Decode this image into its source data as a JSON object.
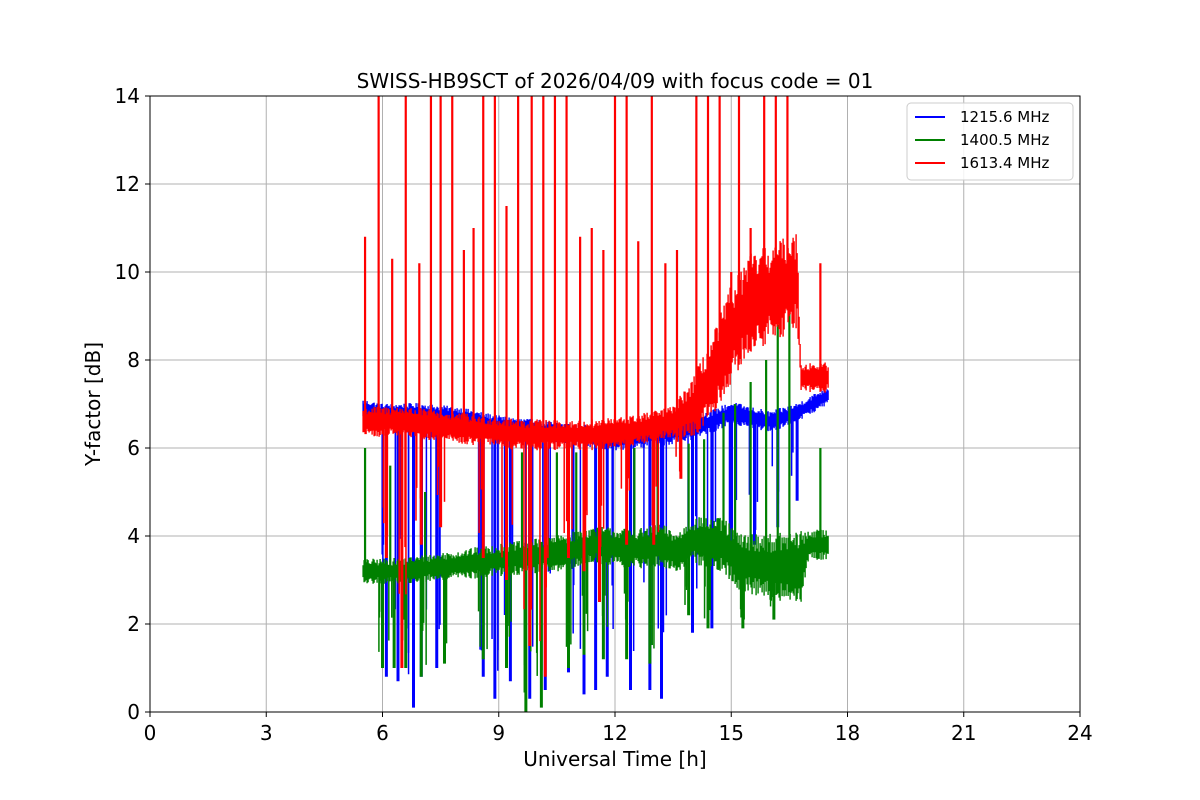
{
  "chart_data": {
    "type": "line",
    "title": "SWISS-HB9SCT of 2026/04/09 with focus code = 01",
    "xlabel": "Universal Time [h]",
    "ylabel": "Y-factor [dB]",
    "xlim": [
      0,
      24
    ],
    "ylim": [
      0,
      14
    ],
    "xticks": [
      0,
      3,
      6,
      9,
      12,
      15,
      18,
      21,
      24
    ],
    "yticks": [
      0,
      2,
      4,
      6,
      8,
      10,
      12,
      14
    ],
    "grid": true,
    "legend_position": "top-right",
    "series": [
      {
        "name": "1215.6 MHz",
        "color": "#0000ff",
        "baseline": [
          [
            5.5,
            6.9
          ],
          [
            6.0,
            6.8
          ],
          [
            7.0,
            6.8
          ],
          [
            8.0,
            6.7
          ],
          [
            9.0,
            6.5
          ],
          [
            10.0,
            6.4
          ],
          [
            11.0,
            6.3
          ],
          [
            12.0,
            6.2
          ],
          [
            13.0,
            6.3
          ],
          [
            13.8,
            6.4
          ],
          [
            14.5,
            6.6
          ],
          [
            15.0,
            6.8
          ],
          [
            16.0,
            6.6
          ],
          [
            16.7,
            6.8
          ],
          [
            17.5,
            7.2
          ]
        ],
        "band": [
          [
            5.5,
            0.15
          ],
          [
            13.8,
            0.2
          ],
          [
            17.5,
            0.15
          ]
        ],
        "dips": [
          [
            6.1,
            0.8
          ],
          [
            6.4,
            0.7
          ],
          [
            6.8,
            0.1
          ],
          [
            7.0,
            0.8
          ],
          [
            7.4,
            1.0
          ],
          [
            8.6,
            0.8
          ],
          [
            8.9,
            0.3
          ],
          [
            9.3,
            0.7
          ],
          [
            9.8,
            0.3
          ],
          [
            10.2,
            0.5
          ],
          [
            10.8,
            0.9
          ],
          [
            11.2,
            0.4
          ],
          [
            11.5,
            0.5
          ],
          [
            11.8,
            0.8
          ],
          [
            12.4,
            0.5
          ],
          [
            12.9,
            0.5
          ],
          [
            13.2,
            0.3
          ],
          [
            14.0,
            1.8
          ],
          [
            14.5,
            1.9
          ],
          [
            15.0,
            3.5
          ],
          [
            15.6,
            3.8
          ],
          [
            16.2,
            4.2
          ],
          [
            16.7,
            4.8
          ]
        ]
      },
      {
        "name": "1400.5 MHz",
        "color": "#008000",
        "baseline": [
          [
            5.5,
            3.2
          ],
          [
            6.5,
            3.2
          ],
          [
            7.5,
            3.3
          ],
          [
            8.5,
            3.4
          ],
          [
            9.5,
            3.5
          ],
          [
            10.5,
            3.6
          ],
          [
            11.5,
            3.8
          ],
          [
            12.5,
            3.7
          ],
          [
            13.2,
            3.8
          ],
          [
            13.6,
            3.6
          ],
          [
            14.0,
            3.9
          ],
          [
            14.8,
            3.8
          ],
          [
            15.2,
            3.4
          ],
          [
            16.0,
            3.3
          ],
          [
            16.8,
            3.3
          ],
          [
            17.0,
            3.8
          ],
          [
            17.5,
            3.8
          ]
        ],
        "band": [
          [
            5.5,
            0.2
          ],
          [
            13.6,
            0.35
          ],
          [
            16.8,
            0.6
          ],
          [
            17.0,
            0.25
          ],
          [
            17.5,
            0.25
          ]
        ],
        "dips": [
          [
            6.0,
            1.0
          ],
          [
            6.3,
            1.0
          ],
          [
            6.6,
            1.0
          ],
          [
            7.0,
            0.8
          ],
          [
            7.6,
            1.1
          ],
          [
            8.6,
            1.2
          ],
          [
            9.2,
            1.0
          ],
          [
            9.7,
            0.0
          ],
          [
            10.1,
            0.1
          ],
          [
            10.8,
            1.0
          ],
          [
            11.2,
            1.3
          ],
          [
            11.7,
            1.2
          ],
          [
            12.3,
            1.2
          ],
          [
            12.9,
            1.1
          ],
          [
            13.9,
            2.2
          ],
          [
            14.4,
            1.9
          ],
          [
            15.3,
            1.9
          ],
          [
            16.1,
            2.1
          ],
          [
            16.7,
            2.7
          ]
        ],
        "spikes": [
          [
            5.55,
            6.0
          ],
          [
            6.2,
            5.6
          ],
          [
            7.1,
            5.0
          ],
          [
            8.6,
            5.8
          ],
          [
            9.6,
            5.9
          ],
          [
            10.5,
            5.9
          ],
          [
            11.0,
            5.9
          ],
          [
            12.5,
            6.0
          ],
          [
            13.1,
            6.1
          ],
          [
            13.9,
            6.1
          ],
          [
            14.3,
            6.2
          ],
          [
            14.8,
            6.8
          ],
          [
            15.1,
            7.0
          ],
          [
            15.5,
            7.5
          ],
          [
            15.9,
            8.0
          ],
          [
            16.2,
            8.8
          ],
          [
            16.5,
            9.2
          ],
          [
            17.3,
            6.0
          ]
        ]
      },
      {
        "name": "1613.4 MHz",
        "color": "#ff0000",
        "baseline": [
          [
            5.5,
            6.6
          ],
          [
            6.5,
            6.6
          ],
          [
            7.5,
            6.5
          ],
          [
            8.5,
            6.4
          ],
          [
            9.5,
            6.3
          ],
          [
            10.5,
            6.3
          ],
          [
            11.5,
            6.3
          ],
          [
            12.5,
            6.4
          ],
          [
            13.5,
            6.6
          ],
          [
            14.0,
            6.9
          ],
          [
            14.5,
            7.6
          ],
          [
            15.0,
            8.6
          ],
          [
            15.5,
            9.3
          ],
          [
            16.0,
            9.5
          ],
          [
            16.7,
            9.8
          ],
          [
            16.8,
            7.6
          ],
          [
            17.5,
            7.6
          ]
        ],
        "band": [
          [
            5.5,
            0.25
          ],
          [
            13.5,
            0.25
          ],
          [
            14.0,
            0.5
          ],
          [
            15.0,
            0.8
          ],
          [
            16.7,
            0.8
          ],
          [
            16.8,
            0.25
          ],
          [
            17.5,
            0.25
          ]
        ],
        "dips": [
          [
            6.1,
            3.5
          ],
          [
            6.5,
            1.0
          ],
          [
            7.0,
            3.8
          ],
          [
            7.5,
            4.2
          ],
          [
            8.6,
            3.5
          ],
          [
            9.2,
            3.0
          ],
          [
            9.8,
            1.5
          ],
          [
            10.2,
            0.8
          ],
          [
            10.8,
            3.5
          ],
          [
            11.2,
            3.2
          ],
          [
            11.6,
            2.5
          ],
          [
            12.3,
            3.8
          ],
          [
            13.0,
            3.8
          ],
          [
            13.7,
            5.3
          ]
        ],
        "spikes": [
          [
            5.55,
            10.8
          ],
          [
            5.9,
            14.0
          ],
          [
            6.25,
            10.3
          ],
          [
            6.6,
            14.0
          ],
          [
            6.95,
            10.2
          ],
          [
            7.25,
            14.0
          ],
          [
            7.5,
            14.0
          ],
          [
            7.8,
            14.0
          ],
          [
            8.1,
            10.5
          ],
          [
            8.35,
            11.0
          ],
          [
            8.6,
            14.0
          ],
          [
            8.9,
            14.0
          ],
          [
            9.2,
            11.5
          ],
          [
            9.5,
            14.0
          ],
          [
            9.85,
            14.0
          ],
          [
            10.15,
            14.0
          ],
          [
            10.45,
            14.0
          ],
          [
            10.75,
            14.0
          ],
          [
            11.1,
            10.8
          ],
          [
            11.4,
            11.0
          ],
          [
            11.7,
            10.5
          ],
          [
            12.0,
            14.0
          ],
          [
            12.3,
            14.0
          ],
          [
            12.6,
            10.7
          ],
          [
            12.95,
            14.0
          ],
          [
            13.3,
            10.2
          ],
          [
            13.6,
            10.5
          ],
          [
            14.1,
            14.0
          ],
          [
            14.4,
            14.0
          ],
          [
            14.7,
            14.0
          ],
          [
            15.0,
            10.0
          ],
          [
            15.2,
            14.0
          ],
          [
            15.5,
            11.0
          ],
          [
            15.85,
            14.0
          ],
          [
            16.15,
            14.0
          ],
          [
            16.45,
            14.0
          ],
          [
            17.3,
            10.2
          ]
        ]
      }
    ],
    "x_range_observed": [
      5.5,
      17.5
    ]
  }
}
